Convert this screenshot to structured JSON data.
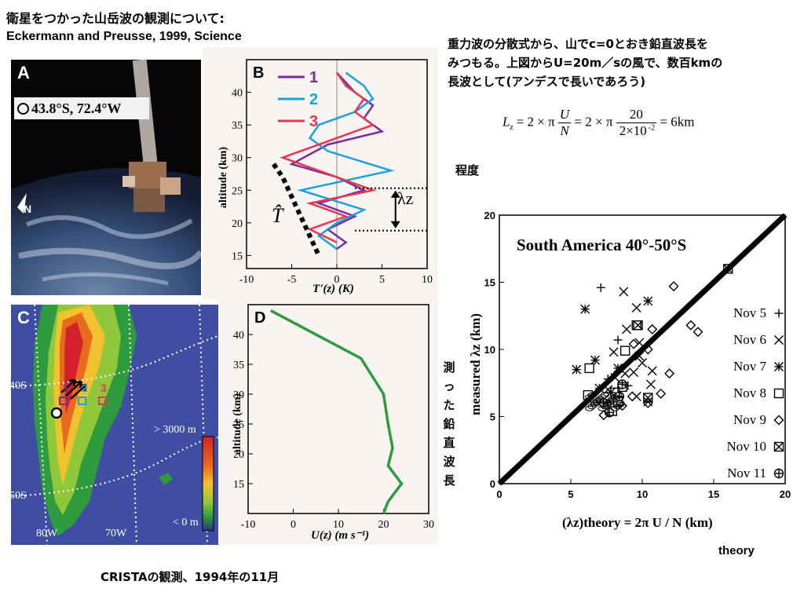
{
  "slide": {
    "title_line1": "衛星をつかった山岳波の観測について:",
    "title_line2": "Eckermann and Preusse, 1999, Science",
    "note_line1": "重力波の分散式から、山でc=0とおき鉛直波長を",
    "note_line2": "みつもる。上図からU=20m／sの風で、数百kmの",
    "note_line3": "長波として(アンデスで長いであろう)",
    "degree_note": "程度",
    "vertical_note": "測った鉛直波長",
    "theory_note": "theory",
    "caption": "CRISTAの観測、1994年の11月"
  },
  "equation": {
    "lhs": "L",
    "lhs_sub": "z",
    "eq1": "= 2 × π",
    "frac1_num": "U",
    "frac1_den": "N",
    "eq2": "= 2 × π",
    "frac2_num": "20",
    "frac2_den": "2×10",
    "frac2_exp": "-2",
    "result": "= 6km"
  },
  "panel_a": {
    "letter": "A",
    "coords": "43.8°S, 72.4°W",
    "north": "N"
  },
  "panel_b": {
    "letter": "B",
    "xlabel": "T'(z) (K)",
    "ylabel": "altitude (km)",
    "legend": [
      "1",
      "2",
      "3"
    ],
    "lambda_label": "λz",
    "that_label": "T̂"
  },
  "panel_c": {
    "letter": "C",
    "lat_labels": [
      "40S",
      "50S"
    ],
    "lon_labels": [
      "80W",
      "70W"
    ],
    "colorbar_top": "> 3000 m",
    "colorbar_bottom": "< 0 m",
    "site_labels": [
      "1",
      "2",
      "3"
    ]
  },
  "panel_d": {
    "letter": "D",
    "xlabel": "U(z) (m s⁻¹)",
    "ylabel": "altitude (km)"
  },
  "scatter_panel": {
    "title": "South America 40°-50°S",
    "xlabel": "(λz)theory = 2π U / N (km)",
    "ylabel": "measured λz (km)",
    "legend": [
      "Nov 5",
      "Nov 6",
      "Nov 7",
      "Nov 8",
      "Nov 9",
      "Nov 10",
      "Nov 11"
    ]
  },
  "colors": {
    "profile1": "#7b2d9b",
    "profile2": "#1aa0e0",
    "profile3": "#e8364f",
    "wind": "#2e9b3e"
  },
  "chart_data": [
    {
      "type": "line",
      "name": "B",
      "x_label": "T'(z) (K)",
      "y_label": "altitude (km)",
      "xlim": [
        -10,
        10
      ],
      "ylim": [
        13,
        45
      ],
      "xticks": [
        -10,
        -5,
        0,
        5,
        10
      ],
      "yticks": [
        15,
        20,
        25,
        30,
        35,
        40
      ],
      "series": [
        {
          "name": "1",
          "color": "#7b2d9b",
          "points": [
            [
              0,
              43
            ],
            [
              2,
              40
            ],
            [
              4,
              38
            ],
            [
              3,
              36
            ],
            [
              5,
              34
            ],
            [
              -1,
              32
            ],
            [
              -5,
              29
            ],
            [
              0,
              27
            ],
            [
              3,
              25
            ],
            [
              -2,
              23
            ],
            [
              2,
              21
            ],
            [
              -1,
              19
            ],
            [
              1,
              17
            ],
            [
              0,
              16
            ]
          ]
        },
        {
          "name": "2",
          "color": "#1aa0e0",
          "points": [
            [
              1,
              43
            ],
            [
              3,
              41
            ],
            [
              4,
              39
            ],
            [
              2,
              37
            ],
            [
              -2,
              35
            ],
            [
              -3,
              33
            ],
            [
              -1,
              31
            ],
            [
              6,
              28
            ],
            [
              -4,
              25
            ],
            [
              3,
              22
            ],
            [
              0,
              20
            ],
            [
              -2,
              18
            ],
            [
              0,
              16
            ]
          ]
        },
        {
          "name": "3",
          "color": "#e8364f",
          "points": [
            [
              0,
              43
            ],
            [
              1,
              41
            ],
            [
              3,
              39
            ],
            [
              2,
              37
            ],
            [
              4,
              35
            ],
            [
              0,
              33
            ],
            [
              -6,
              30
            ],
            [
              -2,
              28
            ],
            [
              4,
              25
            ],
            [
              -3,
              23
            ],
            [
              1,
              21
            ],
            [
              -3,
              19
            ],
            [
              0,
              17
            ]
          ]
        }
      ],
      "that_points": [
        [
          -7,
          29
        ],
        [
          -6,
          27
        ],
        [
          -5,
          24
        ],
        [
          -4,
          21
        ],
        [
          -3,
          18
        ],
        [
          -2,
          15
        ]
      ],
      "lambda_range": [
        18.8,
        25.3
      ]
    },
    {
      "type": "line",
      "name": "D",
      "x_label": "U(z) (m s⁻¹)",
      "y_label": "altitude (km)",
      "xlim": [
        -10,
        30
      ],
      "ylim": [
        10,
        45
      ],
      "xticks": [
        -10,
        0,
        10,
        20,
        30
      ],
      "yticks": [
        15,
        20,
        25,
        30,
        35,
        40
      ],
      "series": [
        {
          "color": "#2e9b3e",
          "points": [
            [
              -5,
              44
            ],
            [
              15,
              36
            ],
            [
              20,
              30
            ],
            [
              21,
              25
            ],
            [
              22,
              21
            ],
            [
              21,
              18
            ],
            [
              24,
              15
            ],
            [
              21,
              12
            ],
            [
              20,
              10
            ]
          ]
        }
      ]
    },
    {
      "type": "scatter",
      "name": "South America",
      "xlim": [
        0,
        20
      ],
      "ylim": [
        0,
        20
      ],
      "xticks": [
        0,
        5,
        10,
        15,
        20
      ],
      "yticks": [
        0,
        5,
        10,
        15,
        20
      ],
      "fit_line": [
        [
          0,
          0
        ],
        [
          20,
          20
        ]
      ],
      "series": [
        {
          "name": "Nov 5",
          "marker": "plus",
          "points": [
            [
              7.1,
              14.6
            ],
            [
              7.6,
              7.8
            ],
            [
              8.3,
              10.7
            ],
            [
              9.0,
              7.3
            ]
          ]
        },
        {
          "name": "Nov 6",
          "marker": "x",
          "points": [
            [
              8.7,
              14.3
            ],
            [
              8.9,
              11.5
            ],
            [
              9.6,
              13.1
            ],
            [
              9.8,
              9.5
            ],
            [
              10.6,
              7.4
            ],
            [
              9.6,
              6.5
            ],
            [
              8.1,
              7.9
            ],
            [
              8.8,
              8.2
            ],
            [
              9.4,
              8.3
            ],
            [
              10.0,
              9.0
            ],
            [
              10.7,
              8.4
            ],
            [
              10.4,
              6.1
            ],
            [
              9.8,
              10.5
            ],
            [
              8.0,
              9.8
            ],
            [
              7.6,
              7.0
            ]
          ]
        },
        {
          "name": "Nov 7",
          "marker": "asterisk",
          "points": [
            [
              6.0,
              13.0
            ],
            [
              5.4,
              8.5
            ],
            [
              6.7,
              9.2
            ],
            [
              7.8,
              6.8
            ],
            [
              8.3,
              8.6
            ],
            [
              7.0,
              7.1
            ],
            [
              10.4,
              13.6
            ]
          ]
        },
        {
          "name": "Nov 8",
          "marker": "square",
          "points": [
            [
              6.3,
              8.6
            ],
            [
              8.8,
              9.9
            ],
            [
              9.6,
              11.8
            ],
            [
              8.6,
              7.2
            ],
            [
              8.1,
              6.8
            ],
            [
              7.9,
              5.4
            ],
            [
              8.3,
              6.1
            ],
            [
              6.2,
              6.6
            ]
          ]
        },
        {
          "name": "Nov 9",
          "marker": "diamond",
          "points": [
            [
              12.2,
              14.7
            ],
            [
              10.4,
              10.0
            ],
            [
              11.9,
              8.2
            ],
            [
              13.4,
              11.8
            ],
            [
              13.9,
              11.3
            ],
            [
              9.4,
              10.4
            ],
            [
              10.7,
              11.5
            ],
            [
              10.4,
              6.0
            ],
            [
              7.3,
              5.1
            ],
            [
              8.6,
              5.8
            ],
            [
              11.3,
              6.7
            ],
            [
              9.3,
              6.5
            ]
          ]
        },
        {
          "name": "Nov 10",
          "marker": "square-x",
          "points": [
            [
              16.0,
              16.0
            ],
            [
              10.4,
              6.4
            ],
            [
              9.7,
              11.8
            ]
          ]
        },
        {
          "name": "Nov 11",
          "marker": "circle-plus",
          "points": [
            [
              7.3,
              6.0
            ],
            [
              8.4,
              6.5
            ],
            [
              7.7,
              5.3
            ],
            [
              8.6,
              7.4
            ]
          ]
        }
      ]
    }
  ]
}
